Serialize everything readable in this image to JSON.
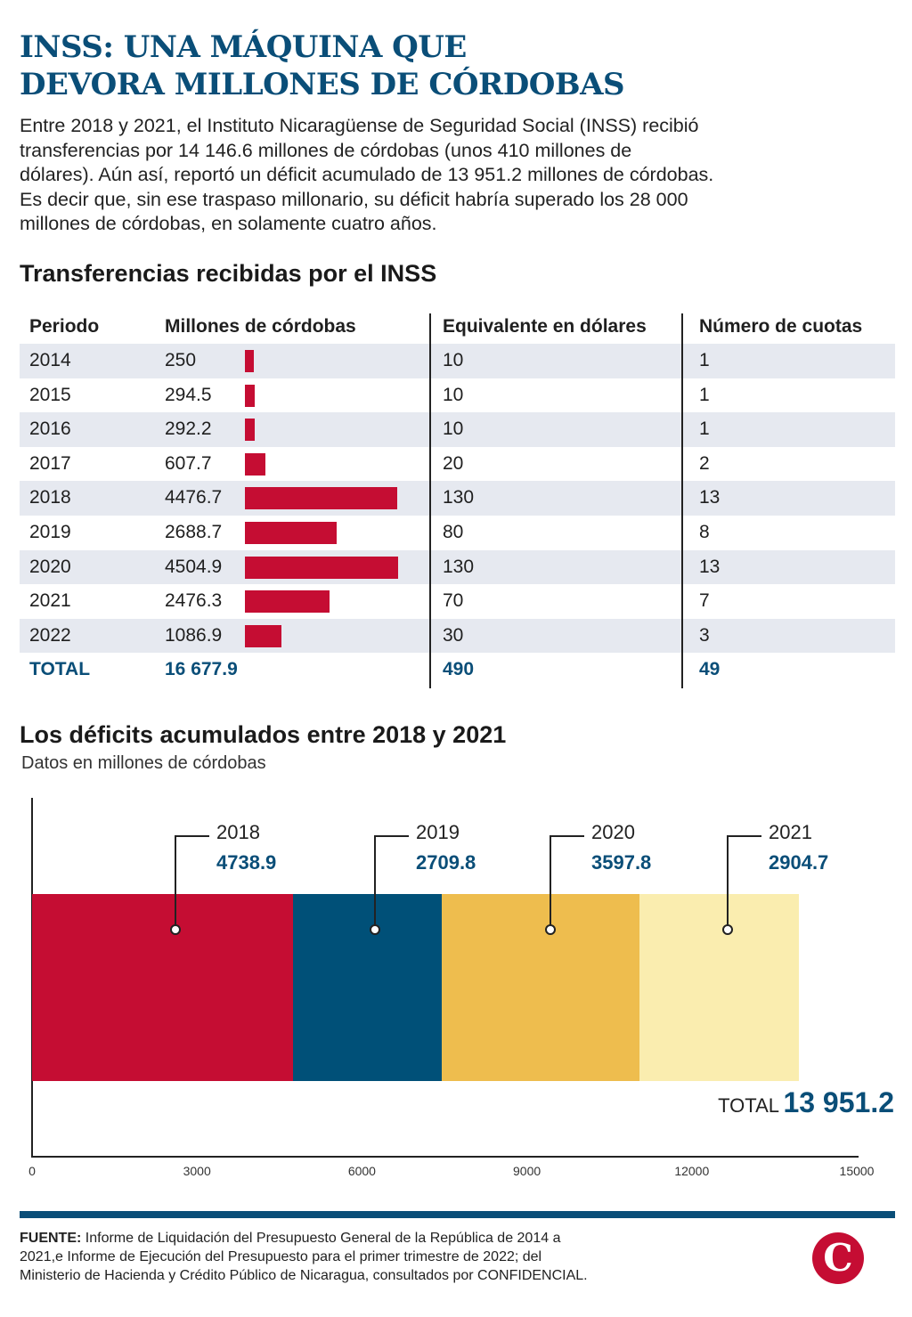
{
  "title_line1": "INSS: UNA MÁQUINA QUE",
  "title_line2": "DEVORA MILLONES DE CÓRDOBAS",
  "intro_lines": [
    "Entre 2018 y 2021, el Instituto Nicaragüense de Seguridad Social (INSS) recibió",
    "transferencias por 14 146.6 millones de córdobas (unos 410 millones de",
    "dólares). Aún así, reportó un déficit acumulado de 13 951.2 millones de córdobas.",
    "Es decir que, sin ese traspaso millonario, su déficit habría superado los 28 000",
    "millones de córdobas, en solamente cuatro años."
  ],
  "table_title": "Transferencias recibidas por el INSS",
  "deficit_title": "Los déficits acumulados entre 2018 y 2021",
  "deficit_subtitle": "Datos en millones de córdobas",
  "source_label": "FUENTE:",
  "source_lines": [
    " Informe de Liquidación del Presupuesto General de la República de 2014 a",
    "2021,e Informe de Ejecución del Presupuesto para el primer trimestre de 2022; del",
    "Ministerio de Hacienda y Crédito Público de Nicaragua, consultados por CONFIDENCIAL."
  ],
  "logo_letter": "C",
  "colors": {
    "accent_blue": "#0a4e78",
    "bar_red": "#c50d33",
    "row_shade": "#e6e9f0"
  },
  "chart_data": [
    {
      "type": "table",
      "title": "Transferencias recibidas por el INSS",
      "columns": [
        "Periodo",
        "Millones de córdobas",
        "Equivalente en dólares",
        "Número de cuotas"
      ],
      "rows": [
        {
          "period": "2014",
          "millones": "250",
          "millones_value": 250,
          "dolares": "10",
          "cuotas": "1"
        },
        {
          "period": "2015",
          "millones": "294.5",
          "millones_value": 294.5,
          "dolares": "10",
          "cuotas": "1"
        },
        {
          "period": "2016",
          "millones": "292.2",
          "millones_value": 292.2,
          "dolares": "10",
          "cuotas": "1"
        },
        {
          "period": "2017",
          "millones": "607.7",
          "millones_value": 607.7,
          "dolares": "20",
          "cuotas": "2"
        },
        {
          "period": "2018",
          "millones": "4476.7",
          "millones_value": 4476.7,
          "dolares": "130",
          "cuotas": "13"
        },
        {
          "period": "2019",
          "millones": "2688.7",
          "millones_value": 2688.7,
          "dolares": "80",
          "cuotas": "8"
        },
        {
          "period": "2020",
          "millones": "4504.9",
          "millones_value": 4504.9,
          "dolares": "130",
          "cuotas": "13"
        },
        {
          "period": "2021",
          "millones": "2476.3",
          "millones_value": 2476.3,
          "dolares": "70",
          "cuotas": "7"
        },
        {
          "period": "2022",
          "millones": "1086.9",
          "millones_value": 1086.9,
          "dolares": "30",
          "cuotas": "3"
        }
      ],
      "total": {
        "period": "TOTAL",
        "millones": "16 677.9",
        "dolares": "490",
        "cuotas": "49"
      }
    },
    {
      "type": "bar",
      "stacked": true,
      "title": "Los déficits acumulados entre 2018 y 2021",
      "subtitle": "Datos en millones de córdobas",
      "xlim": [
        0,
        15000
      ],
      "xticks": [
        "0",
        "3000",
        "6000",
        "9000",
        "12000",
        "15000"
      ],
      "segments": [
        {
          "year": "2018",
          "value_label": "4738.9",
          "value": 4738.9,
          "color": "#c50d33"
        },
        {
          "year": "2019",
          "value_label": "2709.8",
          "value": 2709.8,
          "color": "#005078"
        },
        {
          "year": "2020",
          "value_label": "3597.8",
          "value": 3597.8,
          "color": "#eebd4e"
        },
        {
          "year": "2021",
          "value_label": "2904.7",
          "value": 2904.7,
          "color": "#faedaf"
        }
      ],
      "total_label": "TOTAL",
      "total_value": "13 951.2"
    }
  ]
}
